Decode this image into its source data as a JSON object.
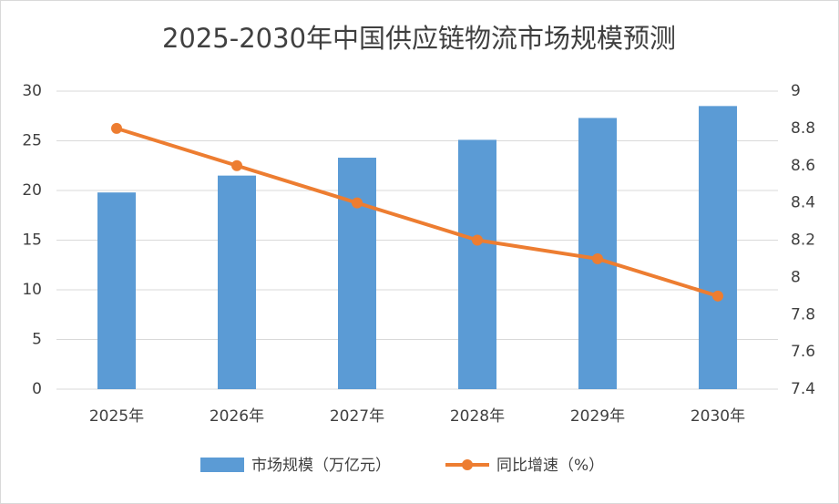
{
  "chart_data": {
    "type": "combo",
    "title": "2025-2030年中国供应链物流市场规模预测",
    "categories": [
      "2025年",
      "2026年",
      "2027年",
      "2028年",
      "2029年",
      "2030年"
    ],
    "series": [
      {
        "name": "市场规模（万亿元）",
        "type": "bar",
        "color": "#5b9bd5",
        "values": [
          19.8,
          21.5,
          23.3,
          25.1,
          27.3,
          28.5
        ]
      },
      {
        "name": "同比增速（%）",
        "type": "line",
        "axis": "y2",
        "color": "#ed7d31",
        "values": [
          8.8,
          8.6,
          8.4,
          8.2,
          8.1,
          7.9
        ]
      }
    ],
    "ylim": [
      0,
      30
    ],
    "yticks": [
      0,
      5,
      10,
      15,
      20,
      25,
      30
    ],
    "y2lim": [
      7.4,
      9
    ],
    "y2ticks": [
      7.4,
      7.6,
      7.8,
      8,
      8.2,
      8.4,
      8.6,
      8.8,
      9
    ],
    "grid": true
  }
}
